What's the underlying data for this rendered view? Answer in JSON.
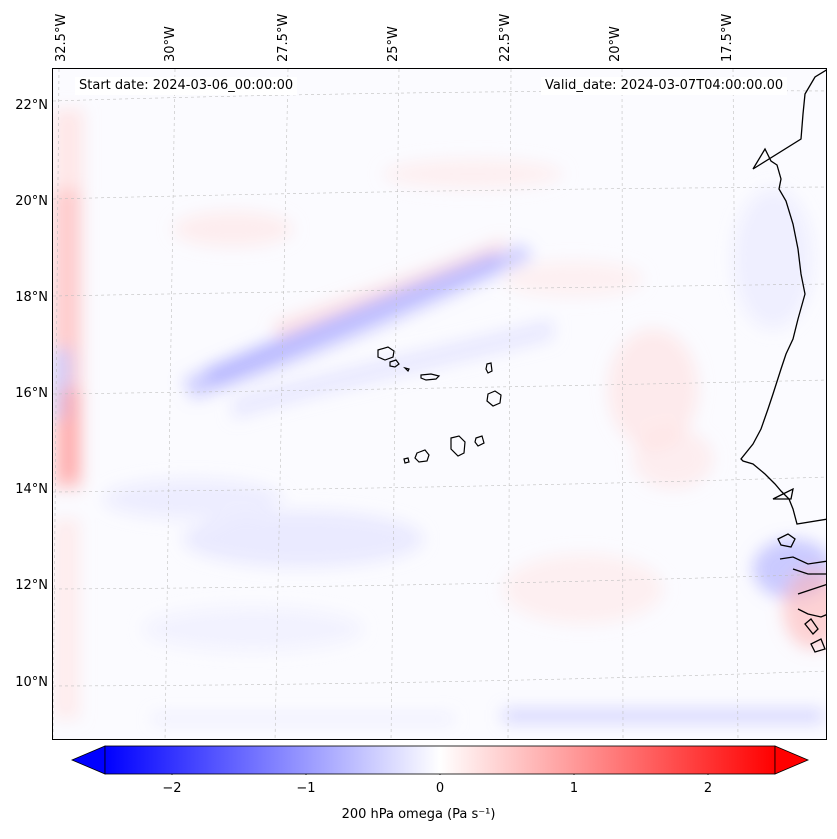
{
  "map": {
    "start_date": "Start date: 2024-03-06_00:00:00",
    "valid_date": "Valid_date: 2024-03-07T04:00:00.00",
    "lon_labels": [
      "32.5°W",
      "30°W",
      "27.5°W",
      "25°W",
      "22.5°W",
      "20°W",
      "17.5°W"
    ],
    "lat_labels": [
      "22°N",
      "20°N",
      "18°N",
      "16°N",
      "14°N",
      "12°N",
      "10°N"
    ],
    "coastline_color": "#000000",
    "grid_color": "#bfbfbf"
  },
  "colorbar": {
    "min": -2.5,
    "max": 2.5,
    "ticks": [
      "−2",
      "−1",
      "0",
      "1",
      "2"
    ],
    "tick_values": [
      -2,
      -1,
      0,
      1,
      2
    ],
    "colors": {
      "negative": "#0000ff",
      "zero": "#ffffff",
      "positive": "#ff0000"
    },
    "label": "200 hPa omega (Pa s⁻¹)"
  }
}
